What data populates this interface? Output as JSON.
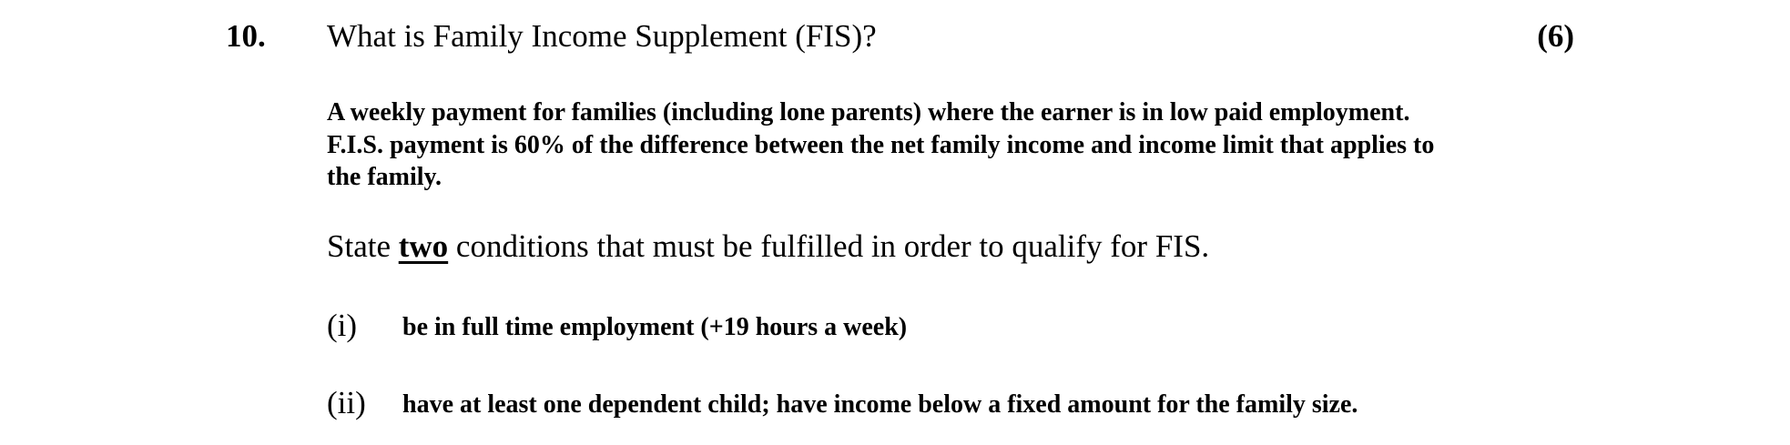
{
  "question": {
    "number": "10.",
    "text": "What is Family Income Supplement (FIS)?",
    "marks": "(6)"
  },
  "answer_lines": [
    "A weekly payment for families (including lone parents) where the earner is in low paid employment.",
    "F.I.S. payment is 60% of the difference between the net family income and income limit that applies to",
    "the family."
  ],
  "prompt": {
    "before": "State ",
    "emphasis": "two",
    "after": " conditions that must be fulfilled in order to qualify for FIS."
  },
  "conditions": [
    {
      "label": "(i)",
      "text": "be in full time employment (+19 hours a week)"
    },
    {
      "label": "(ii)",
      "text": "have at least one dependent child; have income below a fixed amount for the family size."
    }
  ]
}
